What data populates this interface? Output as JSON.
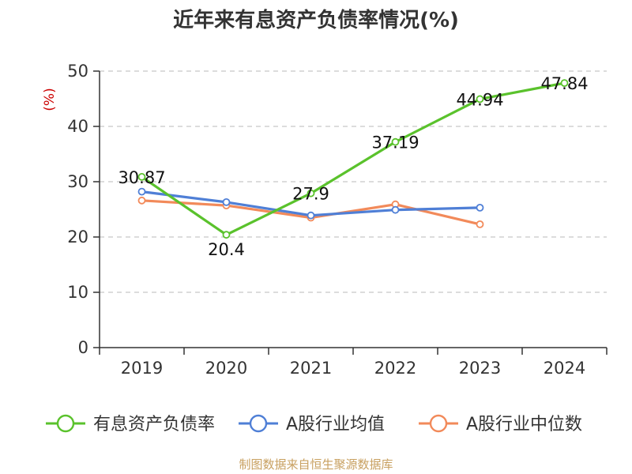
{
  "chart_data": {
    "type": "line",
    "title": "近年来有息资产负债率情况(%)",
    "ylabel": "(%)",
    "categories": [
      "2019",
      "2020",
      "2021",
      "2022",
      "2023",
      "2024"
    ],
    "ylim": [
      0,
      50
    ],
    "yticks": [
      0,
      10,
      20,
      30,
      40,
      50
    ],
    "grid": true,
    "legend_position": "bottom",
    "series": [
      {
        "name": "有息资产负债率",
        "color": "#5ac22c",
        "values": [
          30.87,
          20.4,
          27.9,
          37.19,
          44.94,
          47.84
        ],
        "labels": [
          "30.87",
          "20.4",
          "27.9",
          "37.19",
          "44.94",
          "47.84"
        ]
      },
      {
        "name": "A股行业均值",
        "color": "#4f7fd6",
        "values": [
          28.2,
          26.3,
          23.9,
          24.9,
          25.3,
          null
        ]
      },
      {
        "name": "A股行业中位数",
        "color": "#f28a5a",
        "values": [
          26.6,
          25.7,
          23.5,
          25.9,
          22.3,
          null
        ]
      }
    ]
  },
  "source": "制图数据来自恒生聚源数据库"
}
